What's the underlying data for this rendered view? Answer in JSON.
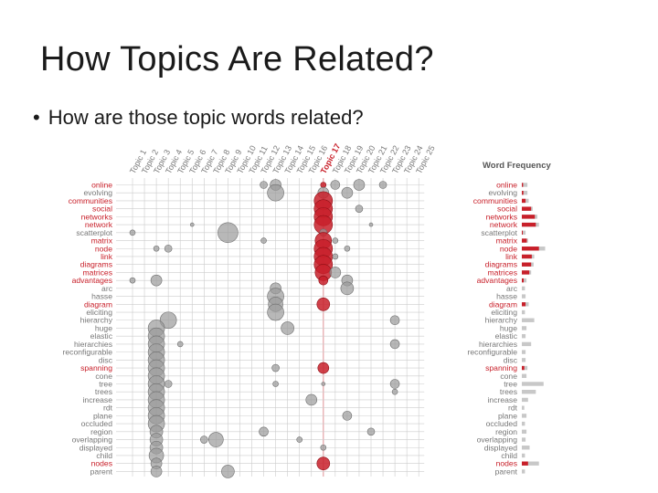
{
  "slide": {
    "title": "How Topics Are Related?",
    "bullet": "How are those topic words related?",
    "bullet_marker": "•"
  },
  "chart_data": {
    "type": "bubble-matrix",
    "title": "",
    "sidebar_title": "Word Frequency",
    "topics": [
      "Topic 1",
      "Topic 2",
      "Topic 3",
      "Topic 4",
      "Topic 5",
      "Topic 6",
      "Topic 7",
      "Topic 8",
      "Topic 9",
      "Topic 10",
      "Topic 11",
      "Topic 12",
      "Topic 13",
      "Topic 14",
      "Topic 15",
      "Topic 16",
      "Topic 17",
      "Topic 18",
      "Topic 19",
      "Topic 20",
      "Topic 21",
      "Topic 22",
      "Topic 23",
      "Topic 24",
      "Topic 25"
    ],
    "highlighted_topic": 16,
    "terms": [
      "online",
      "evolving",
      "communities",
      "social",
      "networks",
      "network",
      "scatterplot",
      "matrix",
      "node",
      "link",
      "diagrams",
      "matrices",
      "advantages",
      "arc",
      "hasse",
      "diagram",
      "eliciting",
      "hierarchy",
      "huge",
      "elastic",
      "hierarchies",
      "reconfigurable",
      "disc",
      "spanning",
      "cone",
      "tree",
      "trees",
      "increase",
      "rdt",
      "plane",
      "occluded",
      "region",
      "overlapping",
      "displayed",
      "child",
      "nodes",
      "parent"
    ],
    "highlighted_terms": [
      "online",
      "evolving",
      "communities",
      "social",
      "networks",
      "network",
      "scatterplot",
      "matrix",
      "node",
      "link",
      "diagrams",
      "matrices",
      "advantages",
      "arc",
      "hasse",
      "diagram",
      "eliciting",
      "hierarchy",
      "huge",
      "elastic",
      "hierarchies",
      "reconfigurable",
      "disc",
      "spanning",
      "cone",
      "tree",
      "trees",
      "increase",
      "rdt",
      "plane",
      "occluded",
      "region",
      "overlapping",
      "displayed",
      "child",
      "nodes",
      "parent"
    ],
    "red_terms": [
      "online",
      "communities",
      "social",
      "networks",
      "network",
      "matrix",
      "node",
      "link",
      "diagrams",
      "matrices",
      "advantages",
      "diagram",
      "spanning",
      "nodes"
    ],
    "bubbles": [
      {
        "term": 0,
        "topic": 11,
        "r": 4
      },
      {
        "term": 0,
        "topic": 12,
        "r": 6
      },
      {
        "term": 0,
        "topic": 16,
        "r": 3
      },
      {
        "term": 0,
        "topic": 17,
        "r": 5
      },
      {
        "term": 0,
        "topic": 19,
        "r": 6
      },
      {
        "term": 0,
        "topic": 21,
        "r": 4
      },
      {
        "term": 1,
        "topic": 12,
        "r": 9
      },
      {
        "term": 1,
        "topic": 16,
        "r": 6
      },
      {
        "term": 1,
        "topic": 18,
        "r": 6
      },
      {
        "term": 2,
        "topic": 16,
        "r": 10
      },
      {
        "term": 3,
        "topic": 16,
        "r": 10
      },
      {
        "term": 3,
        "topic": 19,
        "r": 4
      },
      {
        "term": 4,
        "topic": 16,
        "r": 10
      },
      {
        "term": 5,
        "topic": 5,
        "r": 2
      },
      {
        "term": 5,
        "topic": 16,
        "r": 10
      },
      {
        "term": 5,
        "topic": 20,
        "r": 2
      },
      {
        "term": 6,
        "topic": 0,
        "r": 3
      },
      {
        "term": 6,
        "topic": 8,
        "r": 11
      },
      {
        "term": 6,
        "topic": 16,
        "r": 4
      },
      {
        "term": 7,
        "topic": 11,
        "r": 3
      },
      {
        "term": 7,
        "topic": 16,
        "r": 9
      },
      {
        "term": 7,
        "topic": 17,
        "r": 3
      },
      {
        "term": 8,
        "topic": 2,
        "r": 3
      },
      {
        "term": 8,
        "topic": 3,
        "r": 4
      },
      {
        "term": 8,
        "topic": 16,
        "r": 10
      },
      {
        "term": 8,
        "topic": 18,
        "r": 3
      },
      {
        "term": 9,
        "topic": 16,
        "r": 10
      },
      {
        "term": 9,
        "topic": 17,
        "r": 3
      },
      {
        "term": 10,
        "topic": 16,
        "r": 10
      },
      {
        "term": 11,
        "topic": 16,
        "r": 9
      },
      {
        "term": 11,
        "topic": 17,
        "r": 6
      },
      {
        "term": 12,
        "topic": 0,
        "r": 3
      },
      {
        "term": 12,
        "topic": 2,
        "r": 6
      },
      {
        "term": 12,
        "topic": 16,
        "r": 5
      },
      {
        "term": 12,
        "topic": 18,
        "r": 6
      },
      {
        "term": 13,
        "topic": 12,
        "r": 6
      },
      {
        "term": 13,
        "topic": 18,
        "r": 7
      },
      {
        "term": 14,
        "topic": 12,
        "r": 9
      },
      {
        "term": 15,
        "topic": 12,
        "r": 8
      },
      {
        "term": 15,
        "topic": 16,
        "r": 7
      },
      {
        "term": 16,
        "topic": 12,
        "r": 9
      },
      {
        "term": 17,
        "topic": 3,
        "r": 9
      },
      {
        "term": 17,
        "topic": 22,
        "r": 5
      },
      {
        "term": 18,
        "topic": 2,
        "r": 9
      },
      {
        "term": 18,
        "topic": 13,
        "r": 7
      },
      {
        "term": 19,
        "topic": 2,
        "r": 9
      },
      {
        "term": 20,
        "topic": 2,
        "r": 9
      },
      {
        "term": 20,
        "topic": 4,
        "r": 3
      },
      {
        "term": 20,
        "topic": 22,
        "r": 5
      },
      {
        "term": 21,
        "topic": 2,
        "r": 9
      },
      {
        "term": 22,
        "topic": 2,
        "r": 9
      },
      {
        "term": 23,
        "topic": 2,
        "r": 9
      },
      {
        "term": 23,
        "topic": 12,
        "r": 4
      },
      {
        "term": 23,
        "topic": 16,
        "r": 6
      },
      {
        "term": 24,
        "topic": 2,
        "r": 9
      },
      {
        "term": 25,
        "topic": 2,
        "r": 9
      },
      {
        "term": 25,
        "topic": 3,
        "r": 4
      },
      {
        "term": 25,
        "topic": 12,
        "r": 3
      },
      {
        "term": 25,
        "topic": 16,
        "r": 2
      },
      {
        "term": 25,
        "topic": 22,
        "r": 5
      },
      {
        "term": 26,
        "topic": 2,
        "r": 9
      },
      {
        "term": 26,
        "topic": 22,
        "r": 3
      },
      {
        "term": 27,
        "topic": 2,
        "r": 9
      },
      {
        "term": 27,
        "topic": 15,
        "r": 6
      },
      {
        "term": 28,
        "topic": 2,
        "r": 9
      },
      {
        "term": 29,
        "topic": 2,
        "r": 9
      },
      {
        "term": 29,
        "topic": 18,
        "r": 5
      },
      {
        "term": 30,
        "topic": 2,
        "r": 9
      },
      {
        "term": 31,
        "topic": 2,
        "r": 7
      },
      {
        "term": 31,
        "topic": 11,
        "r": 5
      },
      {
        "term": 31,
        "topic": 20,
        "r": 4
      },
      {
        "term": 32,
        "topic": 2,
        "r": 7
      },
      {
        "term": 32,
        "topic": 6,
        "r": 4
      },
      {
        "term": 32,
        "topic": 7,
        "r": 8
      },
      {
        "term": 32,
        "topic": 14,
        "r": 3
      },
      {
        "term": 33,
        "topic": 2,
        "r": 7
      },
      {
        "term": 33,
        "topic": 16,
        "r": 3
      },
      {
        "term": 34,
        "topic": 2,
        "r": 8
      },
      {
        "term": 35,
        "topic": 2,
        "r": 6
      },
      {
        "term": 35,
        "topic": 16,
        "r": 7
      },
      {
        "term": 36,
        "topic": 2,
        "r": 6
      },
      {
        "term": 36,
        "topic": 8,
        "r": 7
      }
    ],
    "word_frequency": [
      {
        "total": 0.18,
        "topic": 0.04
      },
      {
        "total": 0.18,
        "topic": 0.05
      },
      {
        "total": 0.22,
        "topic": 0.12
      },
      {
        "total": 0.35,
        "topic": 0.3
      },
      {
        "total": 0.5,
        "topic": 0.42
      },
      {
        "total": 0.55,
        "topic": 0.45
      },
      {
        "total": 0.12,
        "topic": 0.03
      },
      {
        "total": 0.2,
        "topic": 0.16
      },
      {
        "total": 0.75,
        "topic": 0.55
      },
      {
        "total": 0.4,
        "topic": 0.32
      },
      {
        "total": 0.38,
        "topic": 0.3
      },
      {
        "total": 0.3,
        "topic": 0.24
      },
      {
        "total": 0.15,
        "topic": 0.06
      },
      {
        "total": 0.1,
        "topic": 0
      },
      {
        "total": 0.12,
        "topic": 0
      },
      {
        "total": 0.22,
        "topic": 0.12
      },
      {
        "total": 0.1,
        "topic": 0
      },
      {
        "total": 0.4,
        "topic": 0
      },
      {
        "total": 0.15,
        "topic": 0
      },
      {
        "total": 0.12,
        "topic": 0
      },
      {
        "total": 0.3,
        "topic": 0
      },
      {
        "total": 0.12,
        "topic": 0
      },
      {
        "total": 0.12,
        "topic": 0
      },
      {
        "total": 0.18,
        "topic": 0.08
      },
      {
        "total": 0.15,
        "topic": 0
      },
      {
        "total": 0.7,
        "topic": 0
      },
      {
        "total": 0.45,
        "topic": 0
      },
      {
        "total": 0.2,
        "topic": 0
      },
      {
        "total": 0.08,
        "topic": 0
      },
      {
        "total": 0.15,
        "topic": 0
      },
      {
        "total": 0.1,
        "topic": 0
      },
      {
        "total": 0.15,
        "topic": 0
      },
      {
        "total": 0.12,
        "topic": 0
      },
      {
        "total": 0.25,
        "topic": 0
      },
      {
        "total": 0.1,
        "topic": 0
      },
      {
        "total": 0.55,
        "topic": 0.2
      },
      {
        "total": 0.1,
        "topic": 0
      }
    ],
    "colors": {
      "red": "#c8202a",
      "gray": "#999999",
      "line": "#cccccc",
      "bubble_gray": "#9a9a9a"
    }
  }
}
